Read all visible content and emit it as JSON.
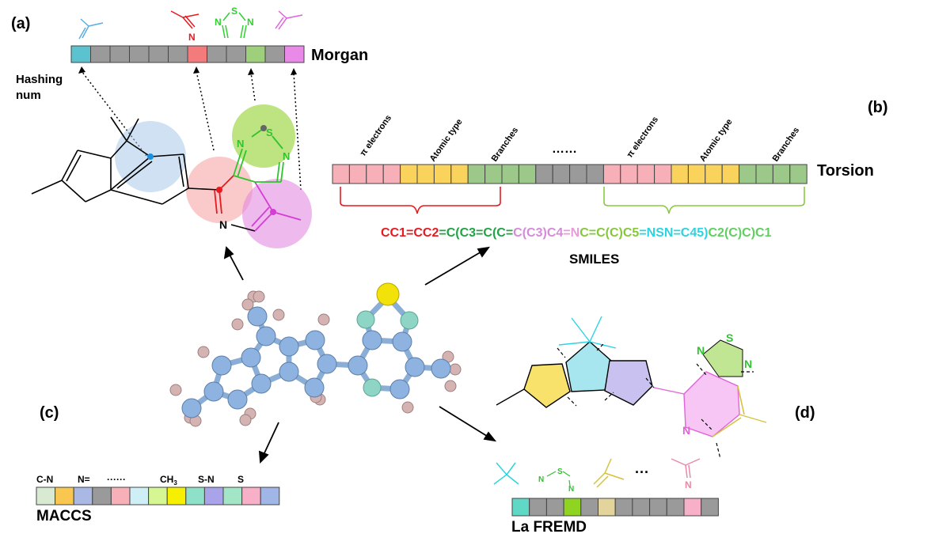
{
  "panels": {
    "a": "(a)",
    "b": "(b)",
    "c": "(c)",
    "d": "(d)"
  },
  "labels": {
    "morgan": "Morgan",
    "hashing_num_line1": "Hashing",
    "hashing_num_line2": "num",
    "torsion": "Torsion",
    "smiles": "SMILES",
    "maccs": "MACCS",
    "lafremd": "La FREMD",
    "ellipsis": "……",
    "dots": "···"
  },
  "torsion_headers": [
    "π electrons",
    "Atomic type",
    "Branches",
    "π electrons",
    "Atomic type",
    "Branches"
  ],
  "maccs_keys": [
    "C-N",
    "N=",
    "······",
    "CH",
    "S-N",
    "S"
  ],
  "maccs_ch3_sub": "3",
  "atom_letters": {
    "n": "N",
    "s": "S"
  },
  "smiles_segments": [
    {
      "text": "CC1=CC2",
      "color": "#e8191f"
    },
    {
      "text": "=C(C3=C(C=",
      "color": "#21a346"
    },
    {
      "text": "C(C3)C4",
      "color": "#d58bd8"
    },
    {
      "text": "=N",
      "color": "#e89bd8"
    },
    {
      "text": "C=C(C)C5",
      "color": "#86c83a"
    },
    {
      "text": "=NSN=C45)",
      "color": "#2bd4e0"
    },
    {
      "text": "C2(C)C)C1",
      "color": "#5fcf5f"
    }
  ],
  "morgan_bits": [
    "#5bc2cf",
    "#9a9a9a",
    "#9a9a9a",
    "#9a9a9a",
    "#9a9a9a",
    "#9a9a9a",
    "#f47b7b",
    "#9a9a9a",
    "#9a9a9a",
    "#9ed07c",
    "#9a9a9a",
    "#e98ae8"
  ],
  "torsion_bits": [
    "#f7b0b8",
    "#f7b0b8",
    "#f7b0b8",
    "#f7b0b8",
    "#f9d35c",
    "#f9d35c",
    "#f9d35c",
    "#f9d35c",
    "#9cc98a",
    "#9cc98a",
    "#9cc98a",
    "#9cc98a",
    "#9a9a9a",
    "#9a9a9a",
    "#9a9a9a",
    "#9a9a9a",
    "#f7b0b8",
    "#f7b0b8",
    "#f7b0b8",
    "#f7b0b8",
    "#f9d35c",
    "#f9d35c",
    "#f9d35c",
    "#f9d35c",
    "#9cc98a",
    "#9cc98a",
    "#9cc98a",
    "#9cc98a"
  ],
  "maccs_bits": [
    "#d9ead3",
    "#f9c74f",
    "#a9b9e3",
    "#9a9a9a",
    "#f7b0b8",
    "#cdeff5",
    "#d6f593",
    "#f6f000",
    "#8fe0c8",
    "#a9a4ea",
    "#a2e6c7",
    "#f7b0c8",
    "#9fb6e6"
  ],
  "lafremd_bits": [
    "#5fd9c6",
    "#9a9a9a",
    "#9a9a9a",
    "#8fd420",
    "#9a9a9a",
    "#e3d39c",
    "#9a9a9a",
    "#9a9a9a",
    "#9a9a9a",
    "#9a9a9a",
    "#f7b0c8",
    "#9a9a9a"
  ]
}
